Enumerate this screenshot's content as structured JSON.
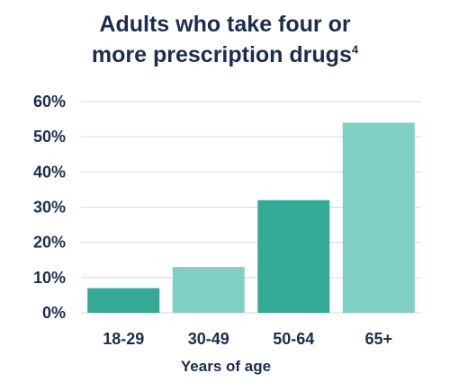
{
  "chart_data": {
    "type": "bar",
    "title": "Adults who take four or more prescription drugs",
    "title_line1": "Adults who take four or",
    "title_line2": "more prescription drugs",
    "title_footnote": "4",
    "xlabel": "Years of age",
    "ylabel": "",
    "categories": [
      "18-29",
      "30-49",
      "50-64",
      "65+"
    ],
    "values": [
      7,
      13,
      32,
      54
    ],
    "bar_colors": [
      "#34a996",
      "#80d0c3",
      "#34a996",
      "#80d0c3"
    ],
    "ylim": [
      0,
      60
    ],
    "yticks": [
      0,
      10,
      20,
      30,
      40,
      50,
      60
    ],
    "ytick_labels": [
      "0%",
      "10%",
      "20%",
      "30%",
      "40%",
      "50%",
      "60%"
    ],
    "grid": true
  }
}
